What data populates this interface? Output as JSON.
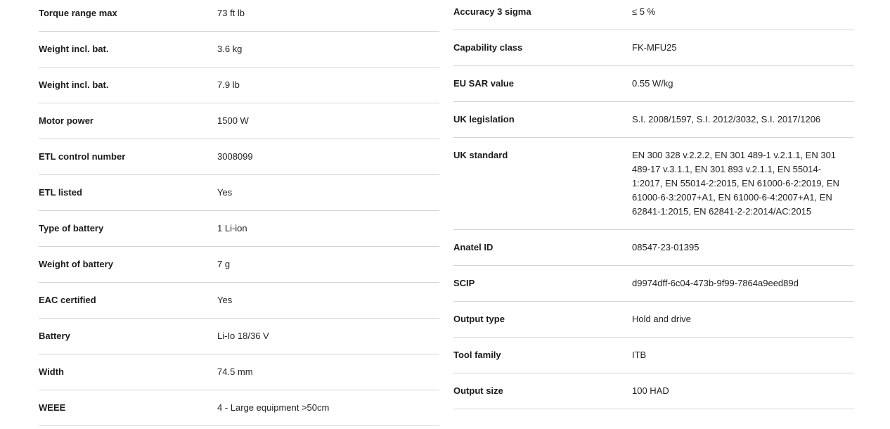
{
  "left": [
    {
      "label": "Torque range max",
      "value": "73 ft lb"
    },
    {
      "label": "Weight incl. bat.",
      "value": "3.6 kg"
    },
    {
      "label": "Weight incl. bat.",
      "value": "7.9 lb"
    },
    {
      "label": "Motor power",
      "value": "1500 W"
    },
    {
      "label": "ETL control number",
      "value": "3008099"
    },
    {
      "label": "ETL listed",
      "value": "Yes"
    },
    {
      "label": "Type of battery",
      "value": "1 Li-ion"
    },
    {
      "label": "Weight of battery",
      "value": "7 g"
    },
    {
      "label": "EAC certified",
      "value": "Yes"
    },
    {
      "label": "Battery",
      "value": "Li-Io 18/36 V"
    },
    {
      "label": "Width",
      "value": "74.5 mm"
    },
    {
      "label": "WEEE",
      "value": "4 - Large equipment >50cm"
    }
  ],
  "right": [
    {
      "label": "Accuracy 3 sigma",
      "value": "≤ 5 %"
    },
    {
      "label": "Capability class",
      "value": "FK-MFU25"
    },
    {
      "label": "EU SAR value",
      "value": "0.55 W/kg"
    },
    {
      "label": "UK legislation",
      "value": "S.I. 2008/1597, S.I. 2012/3032, S.I. 2017/1206"
    },
    {
      "label": "UK standard",
      "value": "EN 300 328 v.2.2.2, EN 301 489-1 v.2.1.1, EN 301 489-17 v.3.1.1, EN 301 893 v.2.1.1, EN 55014-1:2017, EN 55014-2:2015, EN 61000-6-2:2019, EN 61000-6-3:2007+A1, EN 61000-6-4:2007+A1, EN 62841-1:2015, EN 62841-2-2:2014/AC:2015"
    },
    {
      "label": "Anatel ID",
      "value": "08547-23-01395"
    },
    {
      "label": "SCIP",
      "value": "d9974dff-6c04-473b-9f99-7864a9eed89d"
    },
    {
      "label": "Output type",
      "value": "Hold and drive"
    },
    {
      "label": "Tool family",
      "value": "ITB"
    },
    {
      "label": "Output size",
      "value": "100 HAD"
    }
  ]
}
